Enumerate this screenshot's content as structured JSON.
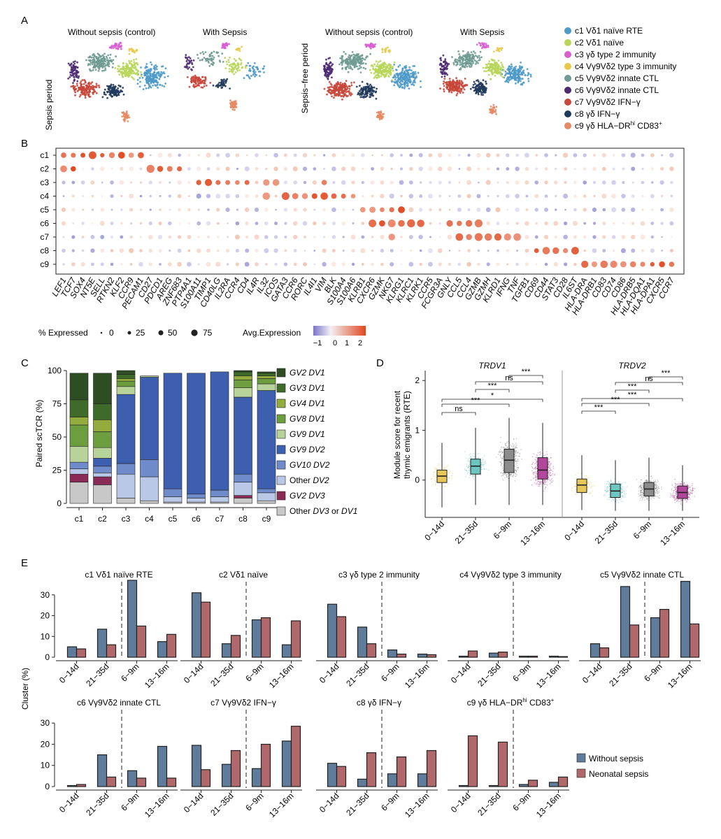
{
  "panel_labels": {
    "a": "A",
    "b": "B",
    "c": "C",
    "d": "D",
    "e": "E"
  },
  "panel_a": {
    "titles": [
      "Without sepsis (control)",
      "With Sepsis",
      "Without sepsis (control)",
      "With Sepsis"
    ],
    "row_label_left": "Sepsis period",
    "row_label_right": "Sepsis−free period",
    "legend": [
      {
        "id": "c1",
        "label": "c1 Vδ1 naïve RTE",
        "color": "#4e9ac9"
      },
      {
        "id": "c2",
        "label": "c2 Vδ1 naïve",
        "color": "#b8d65a"
      },
      {
        "id": "c3",
        "label": "c3 γδ type 2 immunity",
        "color": "#d85ed0"
      },
      {
        "id": "c4",
        "label": "c4 Vγ9Vδ2 type 3 immunity",
        "color": "#e8c94a"
      },
      {
        "id": "c5",
        "label": "c5 Vγ9Vδ2 innate CTL",
        "color": "#6f9b91"
      },
      {
        "id": "c6",
        "label": "c6 Vγ9Vδ2 innate CTL",
        "color": "#4d2a72"
      },
      {
        "id": "c7",
        "label": "c7 Vγ9Vδ2 IFN−γ",
        "color": "#c8463a"
      },
      {
        "id": "c8",
        "label": "c8 γδ IFN−γ",
        "color": "#203a5c"
      },
      {
        "id": "c9",
        "label": "c9 γδ HLA−DR",
        "sup1": "hi",
        "label_tail": " CD83",
        "sup2": "+",
        "color": "#e58a63"
      }
    ]
  },
  "panel_b": {
    "type": "dotplot",
    "rows": [
      "c1",
      "c2",
      "c3",
      "c4",
      "c5",
      "c6",
      "c7",
      "c8",
      "c9"
    ],
    "genes": [
      "LEF1",
      "TCF7",
      "SOX4",
      "NT5E",
      "SELL",
      "RTKN2",
      "KLF2",
      "CCR9",
      "PECAM1",
      "CD27",
      "PDCD1",
      "AREG",
      "ZNF683",
      "PTP4A1",
      "S100A11",
      "TIMP1",
      "CD40LG",
      "IL2RA",
      "CCR4",
      "CD4",
      "IL4R",
      "IL32",
      "ICOS",
      "GATA3",
      "CCR6",
      "RORC",
      "IL4I1",
      "VIM",
      "BLK",
      "S100A4",
      "S100A6",
      "KLRB1",
      "CXCR6",
      "GZMK",
      "NKG7",
      "KLRG1",
      "KLRC1",
      "KLRK1",
      "CCR5",
      "FCGR3A",
      "GNLY",
      "CCL5",
      "CCL4",
      "GZMB",
      "GZMH",
      "KLRD1",
      "IFNG",
      "TNF",
      "TGFB1",
      "CD69",
      "CD44",
      "STAT3",
      "CD28",
      "IL6ST",
      "HLA-DRA",
      "HLA-DRB1",
      "CD83",
      "CD74",
      "CD86",
      "HLA-DRB5",
      "HLA-DQA1",
      "HLA-DPA1",
      "CXCR5",
      "CCR7"
    ],
    "high_expression": {
      "c1": [
        "LEF1",
        "TCF7",
        "SOX4",
        "NT5E",
        "SELL",
        "RTKN2",
        "KLF2",
        "CCR9",
        "PECAM1"
      ],
      "c2": [
        "CD27",
        "PDCD1",
        "AREG",
        "ZNF683",
        "LEF1",
        "TCF7"
      ],
      "c3": [
        "S100A11",
        "TIMP1",
        "CD40LG",
        "IL2RA",
        "CCR4",
        "CD4",
        "IL32",
        "ICOS",
        "VIM"
      ],
      "c4": [
        "GATA3",
        "CCR6",
        "RORC",
        "IL4I1",
        "VIM",
        "BLK",
        "S100A4",
        "S100A6",
        "IL32"
      ],
      "c5": [
        "KLRB1",
        "CXCR6",
        "GZMK",
        "NKG7",
        "KLRG1"
      ],
      "c6": [
        "CXCR6",
        "GZMK",
        "NKG7",
        "KLRG1",
        "KLRC1",
        "KLRK1",
        "GNLY",
        "CCL5",
        "CCL4",
        "GZMB"
      ],
      "c7": [
        "NKG7",
        "CCL5",
        "CCL4",
        "GZMB",
        "GZMH",
        "KLRD1",
        "IFNG",
        "TNF"
      ],
      "c8": [
        "CD69",
        "CD44",
        "STAT3",
        "CD28",
        "IL6ST"
      ],
      "c9": [
        "HLA-DRA",
        "HLA-DRB1",
        "CD83",
        "CD74",
        "CD86",
        "HLA-DRB5",
        "HLA-DQA1",
        "HLA-DPA1",
        "CXCR5",
        "CCR7"
      ]
    },
    "size_legend_title": "% Expressed",
    "size_legend_values": [
      "0",
      "25",
      "50",
      "75"
    ],
    "color_legend_title": "Avg.Expression",
    "color_legend_ticks": [
      "−1",
      "0",
      "1",
      "2"
    ]
  },
  "panel_c": {
    "type": "stacked_bar",
    "ylabel": "Paired scTCR (%)",
    "yticks": [
      "0",
      "25",
      "50",
      "75",
      "100"
    ],
    "categories": [
      "c1",
      "c2",
      "c3",
      "c4",
      "c5",
      "c6",
      "c7",
      "c8",
      "c9"
    ],
    "legend": [
      {
        "label": "GV2 DV1",
        "color": "#2e4d23"
      },
      {
        "label": "GV3 DV1",
        "color": "#3e6b2a"
      },
      {
        "label": "GV4 DV1",
        "color": "#94ab3e"
      },
      {
        "label": "GV8 DV1",
        "color": "#6c9e3f"
      },
      {
        "label": "GV9 DV1",
        "color": "#b8d39a"
      },
      {
        "label": "GV9 DV2",
        "color": "#3e5fb0"
      },
      {
        "label": "GV10 DV2",
        "color": "#6f8bc9"
      },
      {
        "label": "Other DV2",
        "color": "#b8c8e6"
      },
      {
        "label": "GV2 DV3",
        "color": "#8a2a56"
      },
      {
        "label": "Other DV3 or DV1",
        "color": "#c8c8c8"
      }
    ],
    "series": [
      {
        "name": "Other DV3 or DV1",
        "values": [
          16,
          14,
          4,
          2,
          1,
          1,
          1,
          4,
          2
        ]
      },
      {
        "name": "GV2 DV3",
        "values": [
          6,
          6,
          0,
          0,
          0,
          0,
          0,
          2,
          0
        ]
      },
      {
        "name": "Other DV2",
        "values": [
          4,
          3,
          18,
          18,
          4,
          3,
          4,
          10,
          6
        ]
      },
      {
        "name": "GV10 DV2",
        "values": [
          5,
          5,
          8,
          13,
          6,
          3,
          5,
          6,
          3
        ]
      },
      {
        "name": "GV9 DV2",
        "values": [
          0,
          6,
          52,
          62,
          87,
          91,
          89,
          58,
          74
        ]
      },
      {
        "name": "GV9 DV1",
        "values": [
          12,
          8,
          6,
          1,
          0,
          0,
          0,
          7,
          5
        ]
      },
      {
        "name": "GV8 DV1",
        "values": [
          16,
          12,
          4,
          0,
          0,
          0,
          0,
          6,
          4
        ]
      },
      {
        "name": "GV4 DV1",
        "values": [
          6,
          9,
          2,
          0,
          0,
          0,
          0,
          3,
          2
        ]
      },
      {
        "name": "GV3 DV1",
        "values": [
          13,
          12,
          3,
          0,
          0,
          0,
          0,
          3,
          2
        ]
      },
      {
        "name": "GV2 DV1",
        "values": [
          20,
          23,
          3,
          0,
          0,
          0,
          0,
          1,
          1
        ]
      }
    ]
  },
  "panel_d": {
    "type": "boxplot",
    "ylabel_line1": "Module score for recent",
    "ylabel_line2": "thymic emigrants (RTE)",
    "yticks": [
      "0",
      "1",
      "2"
    ],
    "groups": [
      "0−14d",
      "21−35d",
      "6−9m",
      "13−16m"
    ],
    "facets": [
      {
        "title": "TRDV1",
        "medians": [
          0.08,
          0.28,
          0.4,
          0.2
        ],
        "q1": [
          -0.05,
          0.12,
          0.15,
          0.02
        ],
        "q3": [
          0.2,
          0.42,
          0.62,
          0.45
        ],
        "whisk_lo": [
          -0.55,
          -0.5,
          -0.5,
          -0.5
        ],
        "whisk_hi": [
          0.75,
          1.05,
          1.25,
          1.15
        ],
        "sig": [
          "ns",
          "***",
          "*",
          "***",
          "ns",
          "***"
        ]
      },
      {
        "title": "TRDV2",
        "medians": [
          -0.1,
          -0.22,
          -0.18,
          -0.25
        ],
        "q1": [
          -0.25,
          -0.35,
          -0.32,
          -0.37
        ],
        "q3": [
          0.02,
          -0.08,
          -0.05,
          -0.12
        ],
        "whisk_lo": [
          -0.6,
          -0.62,
          -0.62,
          -0.62
        ],
        "whisk_hi": [
          0.5,
          0.4,
          0.45,
          0.3
        ],
        "sig": [
          "***",
          "***",
          "***",
          "***",
          "ns",
          "***"
        ]
      }
    ],
    "colors": [
      "#e7c65a",
      "#6cc7c1",
      "#8c8c8c",
      "#b3479b"
    ]
  },
  "panel_e": {
    "type": "grouped_bar",
    "ylabel": "Cluster (%)",
    "yticks": [
      "0",
      "10",
      "20",
      "30"
    ],
    "categories": [
      "0−14d",
      "21−35d",
      "6−9m",
      "13−16m"
    ],
    "legend": [
      {
        "label": "Without sepsis",
        "color": "#5f7c9b"
      },
      {
        "label": "Neonatal sepsis",
        "color": "#b0686a"
      }
    ],
    "facets": [
      {
        "title": "c1 Vδ1 naïve RTE",
        "without": [
          5,
          13.5,
          37,
          7.5
        ],
        "sepsis": [
          4,
          6,
          15,
          11
        ]
      },
      {
        "title": "c2 Vδ1 naïve",
        "without": [
          31,
          6.5,
          18,
          6
        ],
        "sepsis": [
          26.5,
          10.5,
          19,
          17.5
        ]
      },
      {
        "title": "c3 γδ type 2 immunity",
        "without": [
          25.5,
          14.5,
          3.5,
          1.5
        ],
        "sepsis": [
          19.5,
          6.5,
          1.5,
          1.2
        ]
      },
      {
        "title": "c4 Vγ9Vδ2 type 3 immunity",
        "without": [
          0.5,
          2,
          0.5,
          0.5
        ],
        "sepsis": [
          3,
          2.5,
          0.5,
          0.3
        ]
      },
      {
        "title": "c5 Vγ9Vδ2 innate CTL",
        "without": [
          6.5,
          34,
          19,
          36.5
        ],
        "sepsis": [
          4.5,
          15.5,
          23,
          16
        ]
      },
      {
        "title": "c6 Vγ9Vδ2 innate CTL",
        "without": [
          0.5,
          15,
          7.5,
          19
        ],
        "sepsis": [
          1,
          4.5,
          4,
          4
        ]
      },
      {
        "title": "c7 Vγ9Vδ2 IFN−γ",
        "without": [
          19.5,
          10.5,
          8.5,
          21.5
        ],
        "sepsis": [
          8,
          17,
          20,
          28.5
        ]
      },
      {
        "title": "c8 γδ IFN−γ",
        "without": [
          11,
          3.5,
          6,
          6
        ],
        "sepsis": [
          9.5,
          16,
          14,
          17
        ]
      },
      {
        "title": "c9 γδ HLA−DR",
        "title_sup1": "hi",
        "title_tail": " CD83",
        "title_sup2": "+",
        "without": [
          0.5,
          0.5,
          1,
          2
        ],
        "sepsis": [
          24,
          21,
          3,
          4.5
        ]
      }
    ]
  }
}
